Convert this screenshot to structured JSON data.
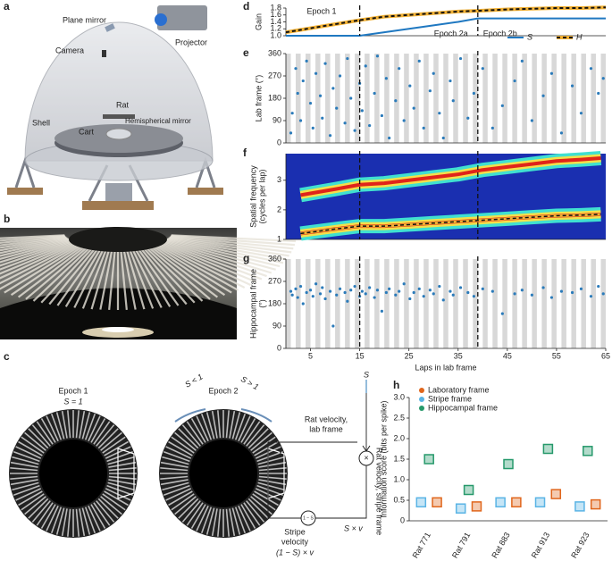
{
  "panel_a": {
    "panel": "a",
    "labels": [
      "Plane mirror",
      "Projector",
      "Camera",
      "Rat",
      "Cart",
      "Hemispherical mirror",
      "Shell"
    ]
  },
  "panel_b": {
    "panel": "b"
  },
  "panel_c": {
    "panel": "c",
    "epoch1": "Epoch 1",
    "s1": "S = 1",
    "epoch2": "Epoch 2",
    "s_lt": "S < 1",
    "s_gt": "S > 1",
    "s_in": "S",
    "rat_lab": "Rat velocity,",
    "rat_lab2": "lab frame",
    "v": "v",
    "times": "×",
    "rat_stripe": "Rat velocity, stripe frame",
    "sv": "S × v",
    "stripe_vel": "Stripe",
    "stripe_vel2": "velocity",
    "stripe_formula": "(1 − S) × v",
    "minus": "1 − S"
  },
  "chart_data": [
    {
      "type": "line",
      "panel": "d",
      "ylabel": "Gain",
      "annotations": [
        "Epoch 1",
        "Epoch 2a",
        "Epoch 2b"
      ],
      "x": [
        0,
        15,
        20,
        25,
        30,
        35,
        39,
        45,
        50,
        55,
        60,
        65
      ],
      "series": [
        {
          "name": "S",
          "color": "#1f78c1",
          "values": [
            1.0,
            1.0,
            1.1,
            1.2,
            1.3,
            1.4,
            1.5,
            1.5,
            1.5,
            1.5,
            1.5,
            1.5
          ]
        },
        {
          "name": "H",
          "color": "#f2b134",
          "dashed": true,
          "values": [
            1.1,
            1.45,
            1.55,
            1.6,
            1.65,
            1.7,
            1.72,
            1.76,
            1.78,
            1.8,
            1.8,
            1.82
          ]
        }
      ],
      "xlim": [
        0,
        65
      ],
      "ylim": [
        1.0,
        1.8
      ],
      "yticks": [
        {
          "value": 1.0,
          "label": "1.0"
        },
        1.2,
        1.4,
        1.6,
        1.8
      ],
      "vlines": [
        15,
        39
      ],
      "legend": "lower right"
    },
    {
      "type": "scatter",
      "panel": "e",
      "ylabel": "Lab frame (°)",
      "color": "#2b7bba",
      "lap_stripes": true,
      "x": [
        1,
        1.3,
        2,
        2.4,
        3,
        3.5,
        4.2,
        5,
        5.5,
        6.1,
        7,
        7.4,
        8,
        9,
        9.6,
        10.3,
        11,
        12,
        12.5,
        13.2,
        14,
        15,
        15.5,
        16.2,
        17,
        18,
        18.6,
        19.5,
        20.4,
        21,
        22.3,
        23,
        24,
        25.2,
        26,
        27.1,
        28,
        29.3,
        30,
        31.2,
        32,
        33.4,
        34,
        35.5,
        37,
        38.2,
        40,
        42,
        44,
        46.5,
        48,
        50,
        52.3,
        54,
        56,
        58.2,
        60,
        62,
        63.5,
        64.5
      ],
      "values": [
        40,
        120,
        300,
        200,
        90,
        250,
        330,
        160,
        60,
        280,
        190,
        100,
        320,
        30,
        220,
        140,
        270,
        80,
        340,
        180,
        50,
        240,
        130,
        310,
        70,
        200,
        350,
        110,
        260,
        20,
        170,
        300,
        90,
        230,
        140,
        330,
        60,
        210,
        280,
        120,
        20,
        250,
        170,
        340,
        100,
        200,
        300,
        60,
        150,
        250,
        330,
        90,
        190,
        280,
        40,
        230,
        120,
        300,
        200,
        260
      ],
      "xlim": [
        0,
        65
      ],
      "ylim": [
        0,
        360
      ],
      "yticks": [
        0,
        90,
        180,
        270,
        360
      ],
      "vlines": [
        15,
        39
      ]
    },
    {
      "type": "heatmap",
      "panel": "f",
      "ylabel": [
        "Spatial frequency",
        "(cycles per lap)"
      ],
      "x": [
        3,
        10,
        15,
        20,
        25,
        30,
        35,
        40,
        45,
        50,
        55,
        60,
        64
      ],
      "series": [
        {
          "color": "#e0241a",
          "values": [
            1.2,
            1.35,
            1.45,
            1.45,
            1.5,
            1.55,
            1.6,
            1.65,
            1.7,
            1.75,
            1.8,
            1.82,
            1.85
          ]
        },
        {
          "color": "#e0241a",
          "values": [
            2.5,
            2.7,
            2.85,
            2.9,
            3.0,
            3.1,
            3.2,
            3.35,
            3.45,
            3.55,
            3.65,
            3.7,
            3.75
          ]
        },
        {
          "color": "#f2b134",
          "dashed": true,
          "values": [
            1.2,
            1.35,
            1.45,
            1.45,
            1.5,
            1.55,
            1.6,
            1.65,
            1.7,
            1.75,
            1.8,
            1.82,
            1.85
          ]
        }
      ],
      "xlim": [
        0,
        65
      ],
      "ylim": [
        1,
        3.9
      ],
      "yticks": [
        1,
        2,
        3
      ],
      "vlines": [
        15,
        39
      ]
    },
    {
      "type": "scatter",
      "panel": "g",
      "ylabel": [
        "Hippocampal frame",
        "(°)"
      ],
      "xlabel": "Laps in lab frame",
      "color": "#2b7bba",
      "lap_stripes": true,
      "x": [
        1,
        1.3,
        2,
        2.4,
        3,
        3.5,
        4.2,
        5,
        5.5,
        6.1,
        7,
        7.4,
        8,
        9,
        9.6,
        10.3,
        11,
        12,
        12.5,
        13.2,
        14,
        15,
        15.5,
        16.2,
        17,
        18,
        18.6,
        19.5,
        20.4,
        21,
        22.3,
        23,
        24,
        25.2,
        26,
        27.1,
        28,
        29.3,
        30,
        31.2,
        32,
        33.4,
        34,
        35.5,
        37,
        38.2,
        40,
        42,
        44,
        46.5,
        48,
        50,
        52.3,
        54,
        56,
        58.2,
        60,
        62,
        63.5,
        64.5
      ],
      "values": [
        230,
        215,
        240,
        205,
        250,
        180,
        225,
        235,
        210,
        260,
        220,
        245,
        200,
        230,
        90,
        215,
        240,
        225,
        190,
        235,
        250,
        210,
        230,
        220,
        245,
        205,
        235,
        150,
        225,
        240,
        215,
        230,
        260,
        200,
        225,
        240,
        210,
        235,
        220,
        250,
        195,
        230,
        215,
        245,
        225,
        210,
        240,
        230,
        140,
        220,
        235,
        215,
        245,
        205,
        230,
        225,
        240,
        210,
        250,
        220
      ],
      "xlim": [
        0,
        65
      ],
      "ylim": [
        0,
        360
      ],
      "yticks": [
        0,
        90,
        180,
        270,
        360
      ],
      "xticks": [
        5,
        15,
        25,
        35,
        45,
        55,
        65
      ],
      "vlines": [
        15,
        39
      ]
    },
    {
      "type": "point",
      "panel": "h",
      "ylabel": "Information score (bits per spike)",
      "categories": [
        "Rat 771",
        "Rat 791",
        "Rat 883",
        "Rat 913",
        "Rat 923"
      ],
      "series": [
        {
          "name": "Laboratory frame",
          "color": "#e0661c",
          "values": [
            0.45,
            0.35,
            0.45,
            0.65,
            0.4
          ]
        },
        {
          "name": "Stripe frame",
          "color": "#5ab4e5",
          "values": [
            0.45,
            0.3,
            0.45,
            0.45,
            0.35
          ]
        },
        {
          "name": "Hippocampal frame",
          "color": "#26996b",
          "values": [
            1.5,
            0.75,
            1.38,
            1.75,
            1.7
          ]
        }
      ],
      "ylim": [
        0,
        3.0
      ],
      "yticks": [
        0,
        0.5,
        {
          "value": 1.0,
          "label": "1.0"
        },
        1.5,
        {
          "value": 2.0,
          "label": "2.0"
        },
        2.5,
        {
          "value": 3.0,
          "label": "3.0"
        }
      ],
      "legend": "upper left"
    }
  ]
}
